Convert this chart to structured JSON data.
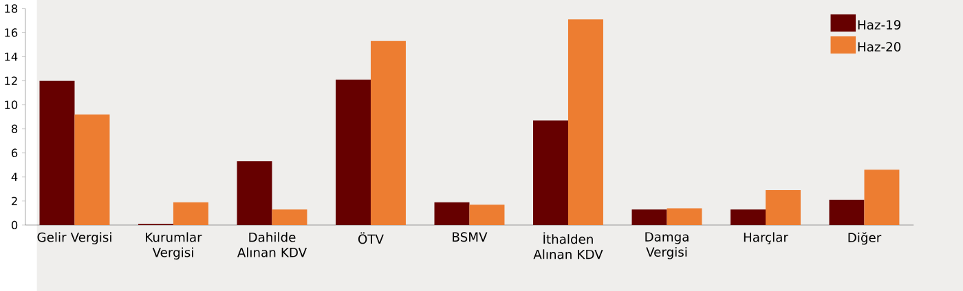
{
  "chart_data": {
    "type": "bar",
    "categories": [
      "Gelir Vergisi",
      "Kurumlar Vergisi",
      "Dahilde Alınan KDV",
      "ÖTV",
      "BSMV",
      "İthalden Alınan KDV",
      "Damga Vergisi",
      "Harçlar",
      "Diğer"
    ],
    "series": [
      {
        "name": "Haz-19",
        "color": "#660000",
        "values": [
          12.0,
          0.1,
          5.3,
          12.1,
          1.9,
          8.7,
          1.3,
          1.3,
          2.1
        ]
      },
      {
        "name": "Haz-20",
        "color": "#ed7d31",
        "values": [
          9.2,
          1.9,
          1.3,
          15.3,
          1.7,
          17.1,
          1.4,
          2.9,
          4.6
        ]
      }
    ],
    "ylim": [
      0,
      18
    ],
    "yticks": [
      0,
      2,
      4,
      6,
      8,
      10,
      12,
      14,
      16,
      18
    ],
    "legend": "top right"
  }
}
